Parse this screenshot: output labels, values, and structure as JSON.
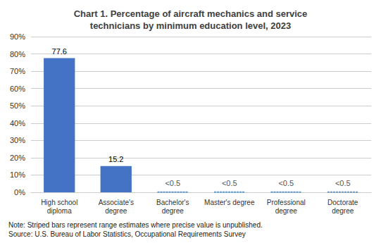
{
  "chart_data": {
    "type": "bar",
    "title": "Chart 1. Percentage of aircraft mechanics and service\ntechnicians by minimum education level, 2023",
    "categories": [
      "High school\ndiploma",
      "Associate's\ndegree",
      "Bachelor's\ndegree",
      "Master's degree",
      "Professional\ndegree",
      "Doctorate\ndegree"
    ],
    "series": [
      {
        "values": [
          77.6,
          15.2,
          null,
          null,
          null,
          null
        ],
        "color": "#4472C4"
      },
      {
        "values": [
          null,
          null,
          0.3,
          0.3,
          0.3,
          0.3
        ],
        "value_labels": [
          null,
          null,
          "<0.5",
          "<0.5",
          "<0.5",
          "<0.5"
        ],
        "color": "#6699CC",
        "line_style": "dotted"
      }
    ],
    "ylim": [
      0,
      90
    ],
    "yticks": [
      {
        "value": 0,
        "label": "0%"
      },
      {
        "value": 10,
        "label": "10%"
      },
      {
        "value": 20,
        "label": "20%"
      },
      {
        "value": 30,
        "label": "30%"
      },
      {
        "value": 40,
        "label": "40%"
      },
      {
        "value": 50,
        "label": "50%"
      },
      {
        "value": 60,
        "label": "60%"
      },
      {
        "value": 70,
        "label": "70%"
      },
      {
        "value": 80,
        "label": "80%"
      },
      {
        "value": 90,
        "label": "90%"
      }
    ],
    "grid": true,
    "data_labels": true,
    "annotations": [
      "Note: Striped bars represent range estimates where precise value is unpublished.\nSource: U.S. Bureau of Labor Statistics, Occupational Requirements Survey"
    ]
  }
}
